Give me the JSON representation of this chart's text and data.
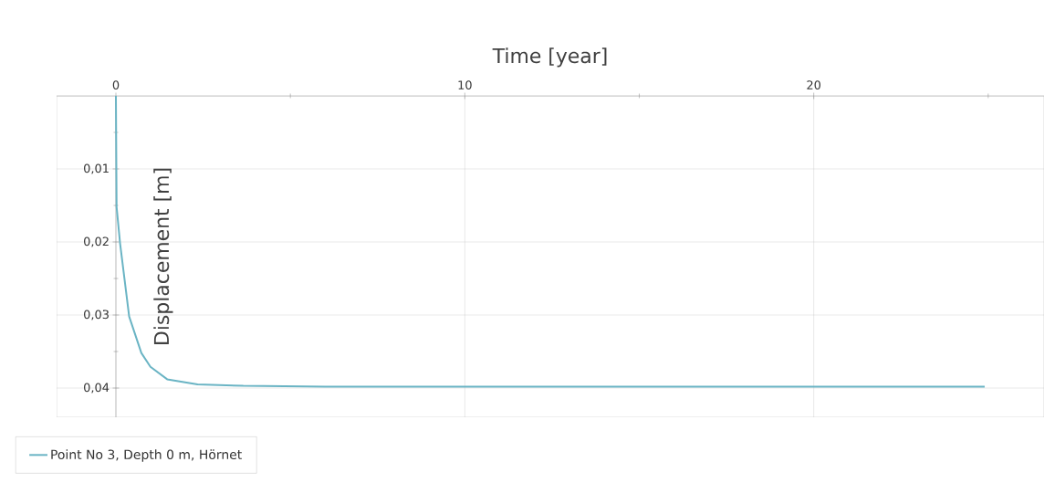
{
  "chart_data": {
    "type": "line",
    "xlabel": "Time [year]",
    "ylabel": "Displacement [m]",
    "xlim": [
      -1.7,
      26.6
    ],
    "ylim": [
      0.044,
      0
    ],
    "xticks": [
      0,
      {
        "value": 5,
        "label": null
      },
      10,
      {
        "value": 15,
        "label": null
      },
      20,
      {
        "value": 25,
        "label": null
      }
    ],
    "yticks": [
      {
        "value": 0.005,
        "label": null
      },
      {
        "value": 0.01,
        "label": "0,01"
      },
      {
        "value": 0.015,
        "label": null
      },
      {
        "value": 0.02,
        "label": "0,02"
      },
      {
        "value": 0.025,
        "label": null
      },
      {
        "value": 0.03,
        "label": "0,03"
      },
      {
        "value": 0.035,
        "label": null
      },
      {
        "value": 0.04,
        "label": "0,04"
      }
    ],
    "grid": true,
    "legend": "bottom left",
    "marker": "none",
    "line_style": "solid",
    "series": [
      {
        "name": "Point No 3, Depth 0 m, Hörnet",
        "color": "#6ab4c4",
        "x": [
          0,
          0.02,
          0.12,
          0.38,
          0.73,
          0.99,
          1.47,
          2.34,
          3.65,
          6,
          10,
          15,
          20,
          24.9
        ],
        "values": [
          0,
          0.0152,
          0.0202,
          0.0302,
          0.0352,
          0.0371,
          0.0388,
          0.0395,
          0.0397,
          0.0398,
          0.0398,
          0.0398,
          0.0398,
          0.0398
        ]
      }
    ]
  }
}
